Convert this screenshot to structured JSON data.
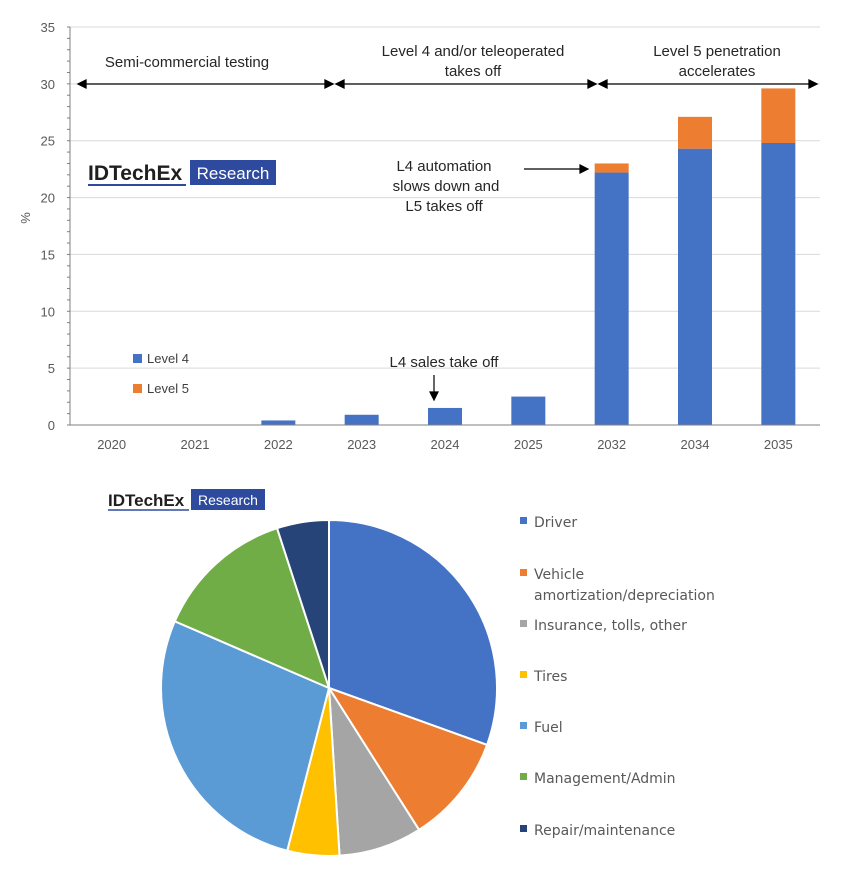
{
  "colors": {
    "level4": "#4472C4",
    "level5": "#ED7D31",
    "grid": "#d9d9d9",
    "axis": "#7f7f7f",
    "brand_box": "#2E4A9E"
  },
  "branding": {
    "name": "IDTechEx",
    "tag": "Research"
  },
  "chart_data": [
    {
      "type": "bar",
      "stacked": true,
      "categories": [
        "2020",
        "2021",
        "2022",
        "2023",
        "2024",
        "2025",
        "2032",
        "2034",
        "2035"
      ],
      "series": [
        {
          "name": "Level 4",
          "color": "#4472C4",
          "values": [
            0,
            0,
            0.4,
            0.9,
            1.5,
            2.5,
            22.2,
            24.3,
            24.8
          ]
        },
        {
          "name": "Level 5",
          "color": "#ED7D31",
          "values": [
            0,
            0,
            0,
            0,
            0,
            0,
            0.8,
            2.8,
            4.8
          ]
        }
      ],
      "ylabel": "%",
      "ylim": [
        0,
        35
      ],
      "yticks": [
        "0",
        "5",
        "10",
        "15",
        "20",
        "25",
        "30",
        "35"
      ],
      "grid": true,
      "legend": "bottom-left",
      "annotations": {
        "phase1": "Semi-commercial testing",
        "phase2_line1": "Level 4 and/or teleoperated",
        "phase2_line2": "takes off",
        "phase3_line1": "Level 5 penetration",
        "phase3_line2": "accelerates",
        "l4_slow_line1": "L4 automation",
        "l4_slow_line2": "slows down and",
        "l4_slow_line3": "L5 takes off",
        "l4_sales": "L4 sales take off"
      }
    },
    {
      "type": "pie",
      "slices": [
        {
          "label": "Driver",
          "value": 30.5,
          "color": "#4472C4"
        },
        {
          "label": "Vehicle amortization/depreciation",
          "line1": "Vehicle",
          "line2": "amortization/depreciation",
          "value": 10.5,
          "color": "#ED7D31"
        },
        {
          "label": "Insurance, tolls, other",
          "value": 8.0,
          "color": "#A5A5A5"
        },
        {
          "label": "Tires",
          "value": 5.0,
          "color": "#FFC000"
        },
        {
          "label": "Fuel",
          "value": 27.5,
          "color": "#5B9BD5"
        },
        {
          "label": "Management/Admin",
          "value": 13.5,
          "color": "#70AD47"
        },
        {
          "label": "Repair/maintenance",
          "value": 5.0,
          "color": "#264478"
        }
      ],
      "legend": "right"
    }
  ]
}
